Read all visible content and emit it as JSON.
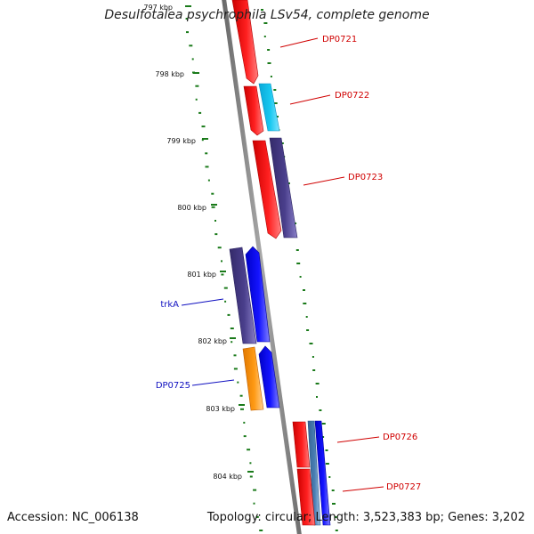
{
  "title": "Desulfotalea psychrophila LSv54, complete genome",
  "accession": "Accession: NC_006138",
  "summary": "Topology: circular; Length: 3,523,383 bp; Genes: 3,202",
  "colors": {
    "backbone": "#8a8a8a",
    "tick": "#1a7a1a",
    "ruler_text": "#111111",
    "label_red": "#d00000",
    "label_blue": "#1010c0",
    "gene_red": "#ff0000",
    "gene_lightblue": "#19c8f0",
    "gene_purple": "#4a3f8c",
    "gene_blue": "#1414ff",
    "gene_orange": "#ff9a14",
    "gene_steel": "#4a7fb4"
  },
  "ruler": [
    "797 kbp",
    "798 kbp",
    "799 kbp",
    "800 kbp",
    "801 kbp",
    "802 kbp",
    "803 kbp",
    "804 kbp"
  ],
  "genes": [
    {
      "label": "DP0721",
      "side": "right",
      "color": "red"
    },
    {
      "label": "DP0722",
      "side": "right",
      "color": "red"
    },
    {
      "label": "DP0723",
      "side": "right",
      "color": "red"
    },
    {
      "label": "trkA",
      "side": "left",
      "color": "blue"
    },
    {
      "label": "DP0725",
      "side": "left",
      "color": "blue"
    },
    {
      "label": "DP0726",
      "side": "right",
      "color": "red"
    },
    {
      "label": "DP0727",
      "side": "right",
      "color": "red"
    }
  ]
}
